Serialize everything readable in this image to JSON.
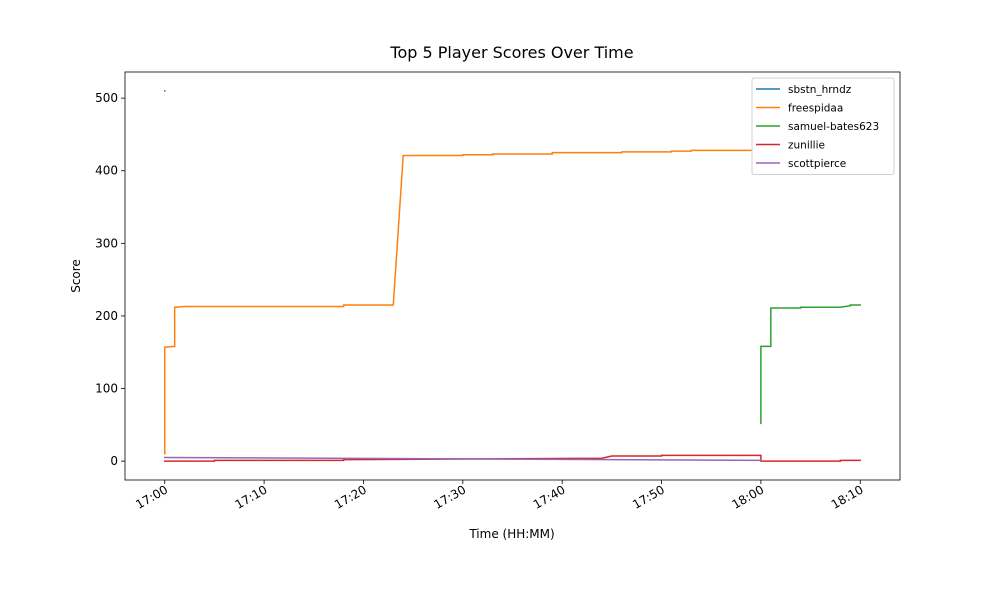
{
  "chart_data": {
    "type": "line",
    "title": "Top 5 Player Scores Over Time",
    "x_label": "Time (HH:MM)",
    "y_label": "Score",
    "xlim": [
      "16:56",
      "18:14"
    ],
    "ylim": [
      -26,
      536
    ],
    "xticks": [
      "17:00",
      "17:10",
      "17:20",
      "17:30",
      "17:40",
      "17:50",
      "18:00",
      "18:10"
    ],
    "yticks": [
      0,
      100,
      200,
      300,
      400,
      500
    ],
    "grid": false,
    "legend": "upper right",
    "series": [
      {
        "name": "sbstn_hrndz",
        "color": "#1f77b4",
        "x": [
          "17:00",
          "17:00"
        ],
        "values": [
          510,
          510
        ]
      },
      {
        "name": "freespidaa",
        "color": "#ff7f0e",
        "x": [
          "17:00",
          "17:00",
          "17:01",
          "17:01",
          "17:02",
          "17:18",
          "17:18",
          "17:23",
          "17:24",
          "17:30",
          "17:30",
          "17:33",
          "17:33",
          "17:39",
          "17:39",
          "17:46",
          "17:46",
          "17:51",
          "17:51",
          "17:53",
          "17:53",
          "17:59"
        ],
        "values": [
          10,
          157,
          158,
          212,
          213,
          213,
          215,
          215,
          421,
          421,
          422,
          422,
          423,
          423,
          425,
          425,
          426,
          426,
          427,
          427,
          428,
          428
        ]
      },
      {
        "name": "samuel-bates623",
        "color": "#2ca02c",
        "x": [
          "18:00",
          "18:00",
          "18:01",
          "18:01",
          "18:04",
          "18:04",
          "18:08",
          "18:09",
          "18:09",
          "18:10"
        ],
        "values": [
          52,
          158,
          158,
          211,
          211,
          212,
          212,
          214,
          215,
          215
        ]
      },
      {
        "name": "zunillie",
        "color": "#d62728",
        "x": [
          "17:00",
          "17:05",
          "17:05",
          "17:18",
          "17:18",
          "17:44",
          "17:45",
          "17:50",
          "17:50",
          "18:00",
          "18:00",
          "18:08",
          "18:08",
          "18:10"
        ],
        "values": [
          0,
          0,
          1,
          1,
          2,
          4,
          7,
          7,
          8,
          8,
          0,
          0,
          1,
          1
        ]
      },
      {
        "name": "scottpierce",
        "color": "#9467bd",
        "x": [
          "17:00",
          "18:00"
        ],
        "values": [
          5,
          1
        ]
      }
    ]
  }
}
